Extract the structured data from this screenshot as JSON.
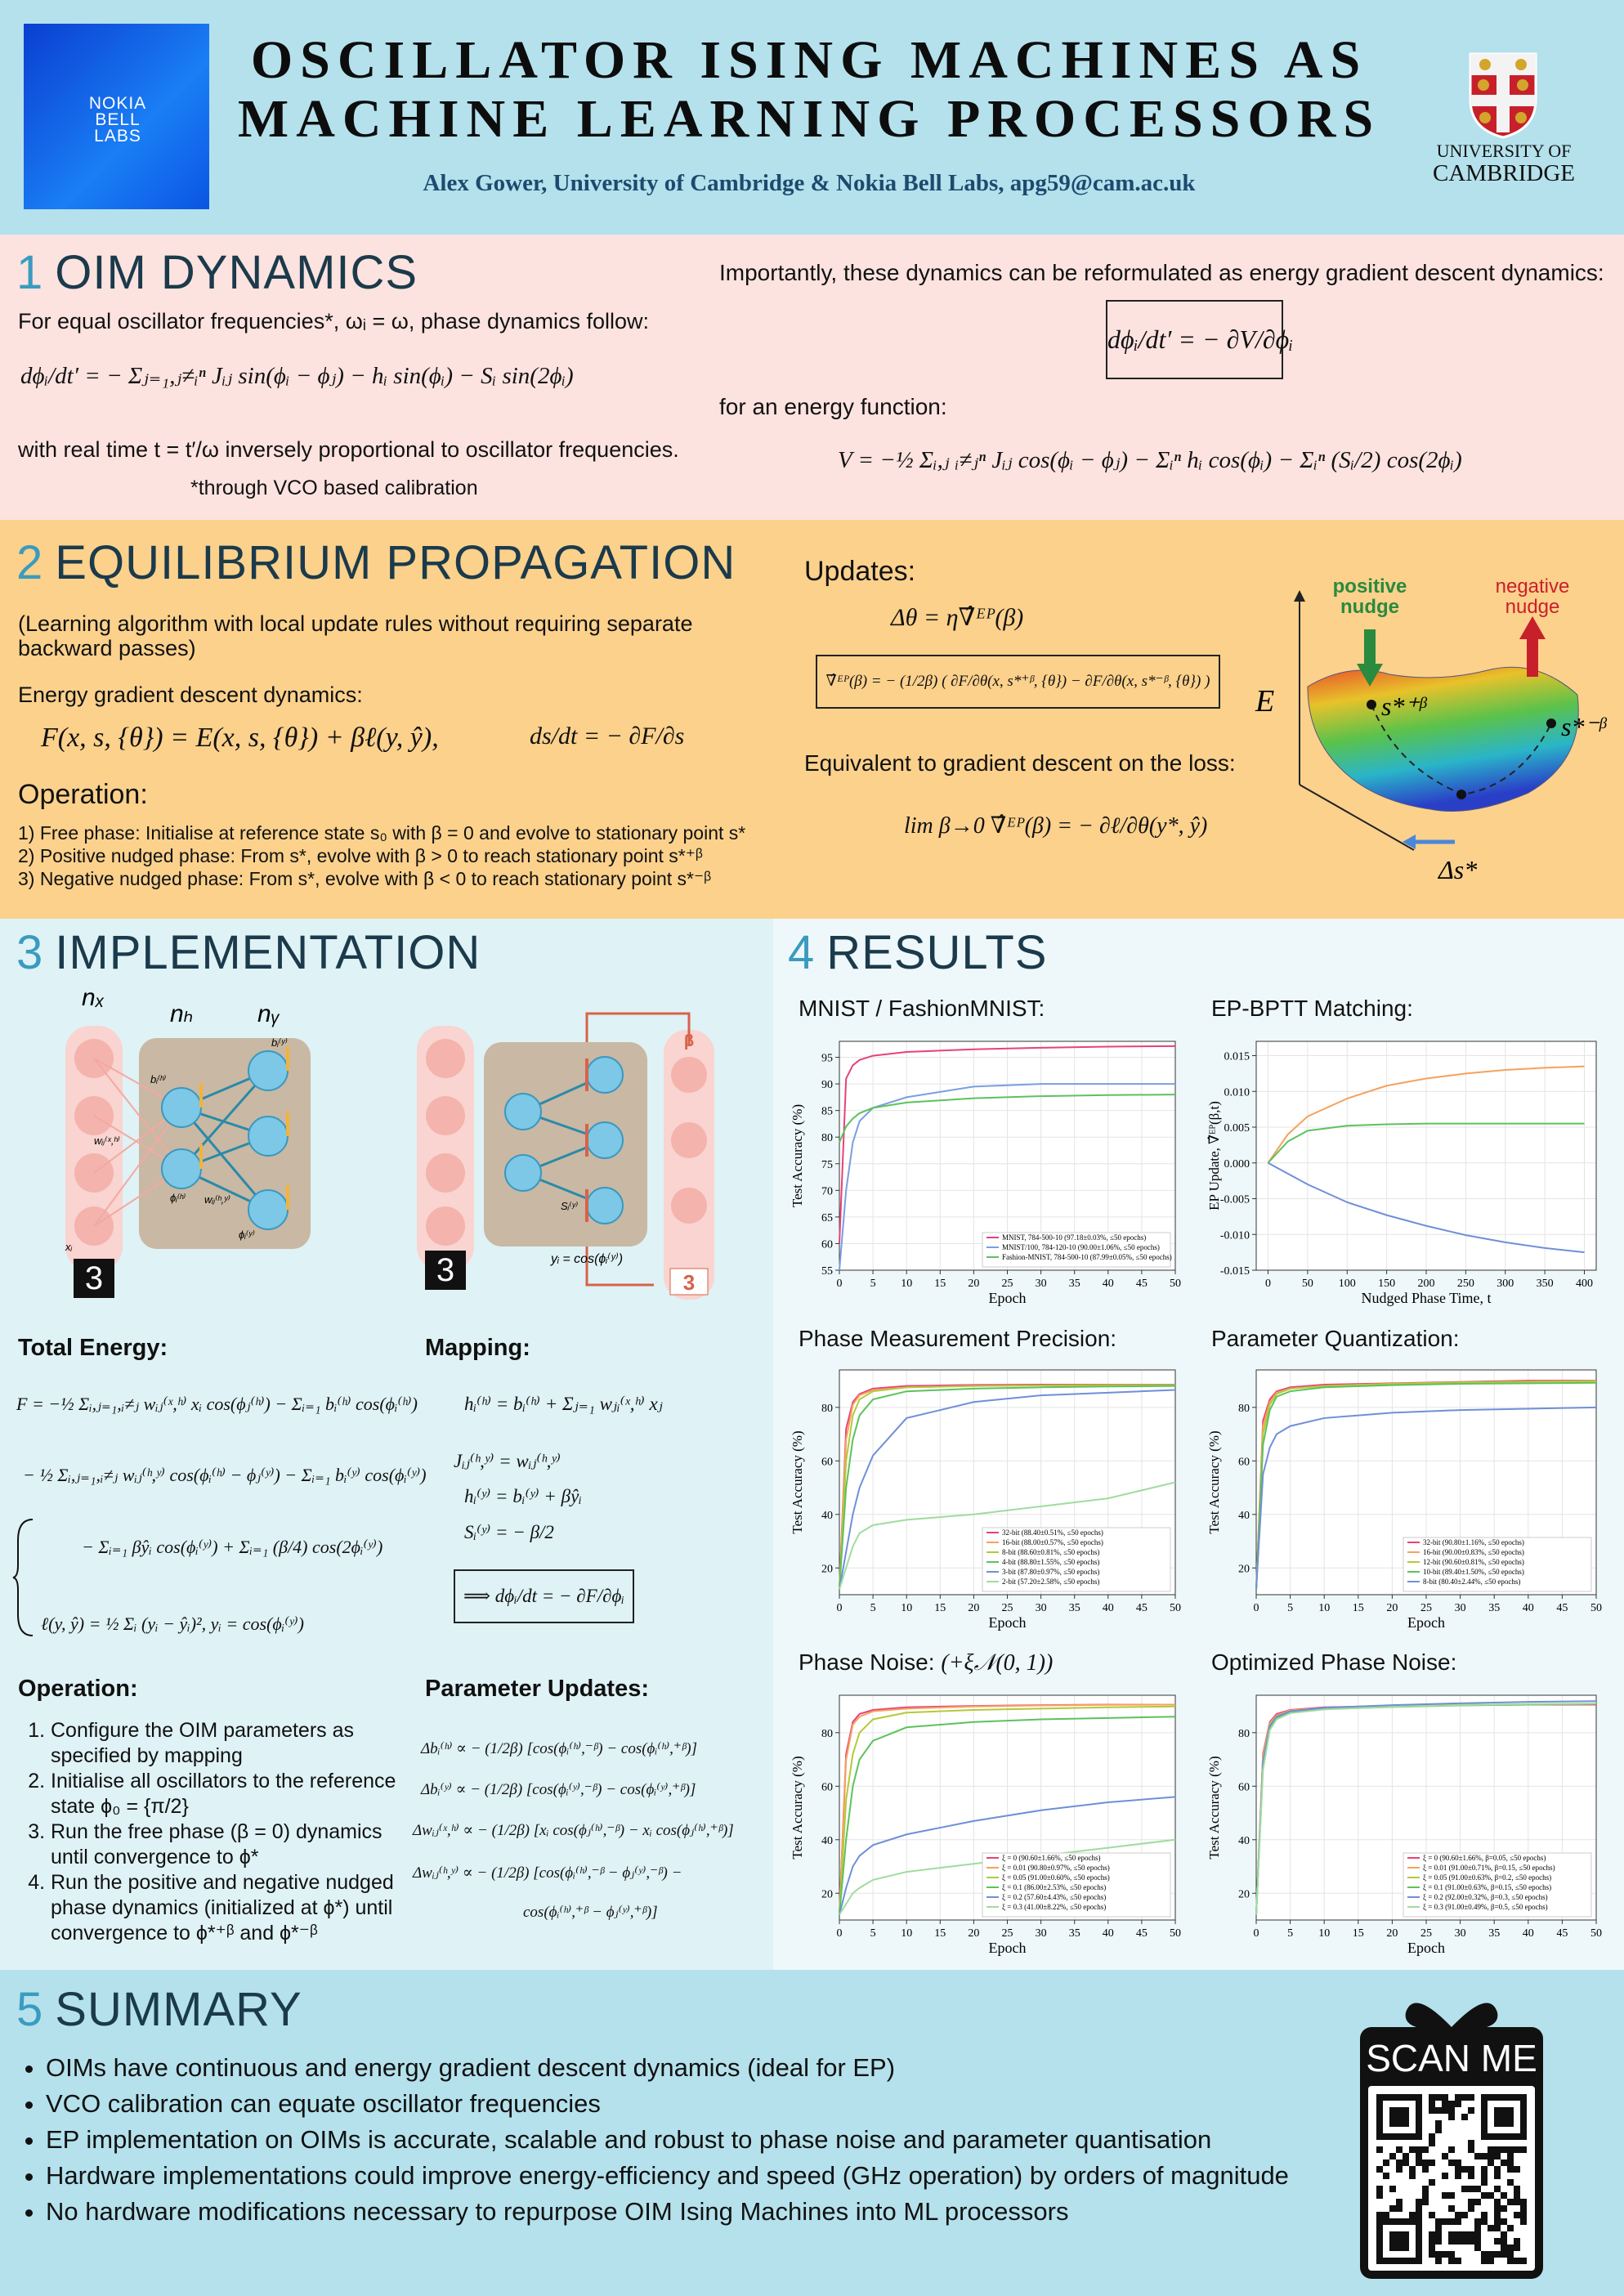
{
  "header": {
    "title_line1": "OSCILLATOR ISING MACHINES AS",
    "title_line2": "MACHINE LEARNING PROCESSORS",
    "authors": "Alex Gower, University of Cambridge & Nokia Bell Labs, apg59@cam.ac.uk",
    "left_logo": [
      "NOKIA",
      "BELL",
      "LABS"
    ],
    "right_logo": [
      "UNIVERSITY OF",
      "CAMBRIDGE"
    ]
  },
  "section1": {
    "number": "1",
    "title": "OIM DYNAMICS",
    "intro": "For equal oscillator frequencies*, ωᵢ = ω, phase dynamics follow:",
    "eq1": "dϕᵢ/dt′ = − Σⱼ₌₁,ⱼ≠ᵢⁿ Jᵢⱼ sin(ϕᵢ − ϕⱼ) − hᵢ sin(ϕᵢ) − Sᵢ sin(2ϕᵢ)",
    "real_time": "with real time t = t′/ω inversely proportional to oscillator frequencies.",
    "footnote": "*through VCO based calibration",
    "reformulated": "Importantly, these dynamics can be reformulated as energy gradient descent dynamics:",
    "eq2": "dϕᵢ/dt′ = − ∂V/∂ϕᵢ",
    "energy_text": "for an energy function:",
    "eq3": "V = −½ Σᵢ,ⱼ ᵢ≠ⱼⁿ Jᵢⱼ cos(ϕᵢ − ϕⱼ) − Σᵢⁿ hᵢ cos(ϕᵢ) − Σᵢⁿ (Sᵢ/2) cos(2ϕᵢ)"
  },
  "section2": {
    "number": "2",
    "title": "EQUILIBRIUM PROPAGATION",
    "description": "(Learning algorithm with local update rules without requiring separate backward passes)",
    "dynamics_label": "Energy gradient descent dynamics:",
    "eq_F": "F(x, s, {θ}) = E(x, s, {θ}) + βℓ(y, ŷ),",
    "eq_ds": "ds/dt = − ∂F/∂s",
    "operation_title": "Operation:",
    "operation_steps": [
      "1) Free phase: Initialise at reference state s₀ with β = 0 and evolve to stationary point s*",
      "2) Positive nudged phase: From s*, evolve with β > 0 to reach stationary point s*⁺ᵝ",
      "3) Negative nudged phase: From s*, evolve with β < 0 to reach stationary point s*⁻ᵝ"
    ],
    "updates_title": "Updates:",
    "eq_dtheta": "Δθ = η∇̂ᴱᴾ(β)",
    "eq_grad": "∇̂ᴱᴾ(β) = − (1/2β) ( ∂F/∂θ(x, s*⁺ᵝ, {θ}) − ∂F/∂θ(x, s*⁻ᵝ, {θ}) )",
    "equivalent": "Equivalent to gradient descent on the loss:",
    "eq_lim": "lim β→0 ∇̂ᴱᴾ(β) = − ∂ℓ/∂θ(y*, ŷ)",
    "surface": {
      "positive": [
        "positive",
        "nudge"
      ],
      "negative": [
        "negative",
        "nudge"
      ],
      "energy": "E",
      "s_plus": "s*⁺ᵝ",
      "s_minus": "s*⁻ᵝ",
      "delta_s": "Δs*"
    }
  },
  "section3": {
    "number": "3",
    "title": "IMPLEMENTATION",
    "diagram": {
      "n_x": "nₓ",
      "n_h": "nₕ",
      "n_y": "nᵧ",
      "beta": "β",
      "digit_left": "3",
      "digit_right": "3",
      "y_eq": "yᵢ = cos(ϕᵢ⁽ʸ⁾)",
      "b_h": "bᵢ⁽ʰ⁾",
      "b_y": "bᵢ⁽ʸ⁾",
      "w_xh": "wᵢⱼ⁽ˣ,ʰ⁾",
      "phi_h": "ϕᵢ⁽ʰ⁾",
      "w_hy": "wᵢⱼ⁽ʰ,ʸ⁾",
      "phi_y": "ϕᵢ⁽ʸ⁾",
      "x_i": "xᵢ",
      "s_y": "Sᵢ⁽ʸ⁾"
    },
    "total_energy_title": "Total Energy:",
    "total_energy": [
      "F = −½ Σᵢ,ⱼ₌₁,ᵢ≠ⱼ wᵢⱼ⁽ˣ,ʰ⁾ xᵢ cos(ϕⱼ⁽ʰ⁾) − Σᵢ₌₁ bᵢ⁽ʰ⁾ cos(ϕᵢ⁽ʰ⁾)",
      "− ½ Σᵢ,ⱼ₌₁,ᵢ≠ⱼ wᵢⱼ⁽ʰ,ʸ⁾ cos(ϕᵢ⁽ʰ⁾ − ϕⱼ⁽ʸ⁾) − Σᵢ₌₁ bᵢ⁽ʸ⁾ cos(ϕᵢ⁽ʸ⁾)",
      "− Σᵢ₌₁ βŷᵢ cos(ϕᵢ⁽ʸ⁾) + Σᵢ₌₁ (β/4) cos(2ϕᵢ⁽ʸ⁾)",
      "ℓ(y, ŷ) = ½ Σᵢ (yᵢ − ŷᵢ)²,   yᵢ = cos(ϕᵢ⁽ʸ⁾)"
    ],
    "mapping_title": "Mapping:",
    "mapping": [
      "hᵢ⁽ʰ⁾ = bᵢ⁽ʰ⁾ + Σⱼ₌₁ wⱼᵢ⁽ˣ,ʰ⁾ xⱼ",
      "Jᵢⱼ⁽ʰ,ʸ⁾ = wᵢⱼ⁽ʰ,ʸ⁾",
      "hᵢ⁽ʸ⁾ = bᵢ⁽ʸ⁾ + βŷᵢ",
      "Sᵢ⁽ʸ⁾ = − β/2",
      "⟹  dϕᵢ/dt = − ∂F/∂ϕᵢ"
    ],
    "operation_title": "Operation:",
    "operation_steps": [
      "Configure the OIM parameters as specified by mapping",
      "Initialise all oscillators to the reference state ϕ₀ = {π/2}",
      "Run the free phase (β = 0) dynamics until convergence to ϕ*",
      "Run the positive and negative nudged phase dynamics (initialized at ϕ*) until convergence to ϕ*⁺ᵝ and ϕ*⁻ᵝ"
    ],
    "updates_title": "Parameter Updates:",
    "updates": [
      "Δbᵢ⁽ʰ⁾ ∝ − (1/2β) [cos(ϕᵢ⁽ʰ⁾,⁻ᵝ) − cos(ϕᵢ⁽ʰ⁾,⁺ᵝ)]",
      "Δbᵢ⁽ʸ⁾ ∝ − (1/2β) [cos(ϕᵢ⁽ʸ⁾,⁻ᵝ) − cos(ϕᵢ⁽ʸ⁾,⁺ᵝ)]",
      "Δwᵢⱼ⁽ˣ,ʰ⁾ ∝ − (1/2β) [xᵢ cos(ϕⱼ⁽ʰ⁾,⁻ᵝ) − xᵢ cos(ϕⱼ⁽ʰ⁾,⁺ᵝ)]",
      "Δwᵢⱼ⁽ʰ,ʸ⁾ ∝ − (1/2β) [cos(ϕᵢ⁽ʰ⁾,⁻ᵝ − ϕⱼ⁽ʸ⁾,⁻ᵝ) −",
      "cos(ϕᵢ⁽ʰ⁾,⁺ᵝ − ϕⱼ⁽ʸ⁾,⁺ᵝ)]"
    ]
  },
  "section4": {
    "number": "4",
    "title": "RESULTS"
  },
  "chart_data": [
    {
      "type": "line",
      "title": "MNIST / FashionMNIST:",
      "xlabel": "Epoch",
      "ylabel": "Test Accuracy (%)",
      "xlim": [
        0,
        50
      ],
      "xticks": [
        0,
        5,
        10,
        15,
        20,
        25,
        30,
        35,
        40,
        45,
        50
      ],
      "ylim": [
        55,
        98
      ],
      "yticks": [
        55,
        60,
        65,
        70,
        75,
        80,
        85,
        90,
        95
      ],
      "grid": true,
      "x": [
        0,
        1,
        2,
        3,
        5,
        10,
        20,
        30,
        40,
        50
      ],
      "series": [
        {
          "name": "MNIST, 784-500-10 (97.18±0.03%, ≤50 epochs)",
          "color": "#e8417a",
          "values": [
            60,
            91,
            93.5,
            94.5,
            95.3,
            96,
            96.5,
            96.8,
            97,
            97.1
          ]
        },
        {
          "name": "MNIST/100, 784-120-10 (90.00±1.06%, ≤50 epochs)",
          "color": "#7a9ee0",
          "values": [
            55,
            70,
            79,
            83,
            85.5,
            87.5,
            89.5,
            90,
            90,
            90
          ]
        },
        {
          "name": "Fashion-MNIST, 784-500-10 (87.99±0.05%, ≤50 epochs)",
          "color": "#5cc25c",
          "values": [
            79,
            82,
            83.5,
            84.5,
            85.5,
            86.5,
            87.3,
            87.7,
            87.9,
            88
          ]
        }
      ]
    },
    {
      "type": "line",
      "title": "EP-BPTT Matching:",
      "xlabel": "Nudged Phase Time, t",
      "ylabel": "EP Update, ∇̂ᴱᴾ(β,t)",
      "xlim": [
        -15,
        415
      ],
      "xticks": [
        0,
        50,
        100,
        150,
        200,
        250,
        300,
        350,
        400
      ],
      "ylim": [
        -0.015,
        0.017
      ],
      "yticks": [
        -0.015,
        {
          "value": -0.01,
          "label": "-0.010"
        },
        -0.005,
        {
          "value": 0,
          "label": "0.000"
        },
        0.005,
        {
          "value": 0.01,
          "label": "0.010"
        },
        0.015
      ],
      "grid": true,
      "x": [
        0,
        25,
        50,
        100,
        150,
        200,
        250,
        300,
        350,
        400
      ],
      "series": [
        {
          "color": "#f5a25d",
          "values": [
            0,
            0.004,
            0.0065,
            0.009,
            0.0108,
            0.0118,
            0.0125,
            0.013,
            0.0133,
            0.0135
          ]
        },
        {
          "color": "#5cc25c",
          "values": [
            0,
            0.003,
            0.0045,
            0.0052,
            0.0054,
            0.0055,
            0.0055,
            0.0055,
            0.0055,
            0.0055
          ]
        },
        {
          "color": "#6f8fd8",
          "values": [
            0,
            -0.0015,
            -0.003,
            -0.0055,
            -0.0073,
            -0.0088,
            -0.0101,
            -0.0111,
            -0.0119,
            -0.0125
          ]
        }
      ]
    },
    {
      "type": "line",
      "title": "Phase Measurement Precision:",
      "xlabel": "Epoch",
      "ylabel": "Test Accuracy (%)",
      "xlim": [
        0,
        50
      ],
      "xticks": [
        0,
        5,
        10,
        15,
        20,
        25,
        30,
        35,
        40,
        45,
        50
      ],
      "ylim": [
        10,
        94
      ],
      "yticks": [
        20,
        40,
        60,
        80
      ],
      "grid": true,
      "x": [
        0,
        1,
        2,
        3,
        5,
        10,
        20,
        30,
        40,
        50
      ],
      "series": [
        {
          "name": "32-bit (88.40±0.51%, ≤50 epochs)",
          "color": "#e8417a",
          "values": [
            12,
            72,
            82,
            85,
            87,
            88,
            88.4,
            88.5,
            88.5,
            88.5
          ]
        },
        {
          "name": "16-bit (88.00±0.57%, ≤50 epochs)",
          "color": "#f5a25d",
          "values": [
            12,
            68,
            81,
            84.5,
            86.5,
            87.5,
            88,
            88.2,
            88.3,
            88.3
          ]
        },
        {
          "name": "8-bit (88.60±0.81%, ≤50 epochs)",
          "color": "#b5c93a",
          "values": [
            12,
            60,
            77,
            83,
            86,
            87.5,
            88,
            88.2,
            88.3,
            88.4
          ]
        },
        {
          "name": "4-bit (88.80±1.55%, ≤50 epochs)",
          "color": "#5cc25c",
          "values": [
            12,
            50,
            68,
            77,
            83,
            86,
            87,
            87.5,
            87.8,
            88
          ]
        },
        {
          "name": "3-bit (87.80±0.97%, ≤50 epochs)",
          "color": "#6f8fd8",
          "values": [
            12,
            26,
            40,
            50,
            62,
            76,
            82,
            84.5,
            85.5,
            86.5
          ]
        },
        {
          "name": "2-bit (57.20±2.58%, ≤50 epochs)",
          "color": "#9fdc9f",
          "values": [
            12,
            20,
            28,
            33,
            36,
            38,
            40,
            43,
            46,
            52
          ]
        }
      ]
    },
    {
      "type": "line",
      "title": "Parameter Quantization:",
      "xlabel": "Epoch",
      "ylabel": "Test Accuracy (%)",
      "xlim": [
        0,
        50
      ],
      "xticks": [
        0,
        5,
        10,
        15,
        20,
        25,
        30,
        35,
        40,
        45,
        50
      ],
      "ylim": [
        10,
        94
      ],
      "yticks": [
        20,
        40,
        60,
        80
      ],
      "grid": true,
      "x": [
        0,
        1,
        2,
        3,
        5,
        10,
        20,
        30,
        40,
        50
      ],
      "series": [
        {
          "name": "32-bit (90.80±1.16%, ≤50 epochs)",
          "color": "#e8417a",
          "values": [
            12,
            75,
            83,
            86,
            87.5,
            88.5,
            89,
            89.5,
            90,
            90
          ]
        },
        {
          "name": "16-bit (90.00±0.83%, ≤50 epochs)",
          "color": "#f5a25d",
          "values": [
            12,
            73,
            82,
            85.5,
            87,
            88,
            88.8,
            89.3,
            89.6,
            89.8
          ]
        },
        {
          "name": "12-bit (90.60±0.81%, ≤50 epochs)",
          "color": "#b5c93a",
          "values": [
            12,
            70,
            81,
            85,
            87,
            88,
            88.8,
            89.3,
            89.6,
            89.8
          ]
        },
        {
          "name": "10-bit (89.40±1.50%, ≤50 epochs)",
          "color": "#5cc25c",
          "values": [
            12,
            66,
            79,
            84,
            86,
            87.5,
            88.3,
            88.8,
            89,
            89.2
          ]
        },
        {
          "name": "8-bit (80.40±2.44%, ≤50 epochs)",
          "color": "#6f8fd8",
          "values": [
            12,
            55,
            65,
            70,
            73,
            76,
            78,
            79,
            79.5,
            80
          ]
        }
      ]
    },
    {
      "type": "line",
      "title": "Phase Noise:",
      "subtitle": "(+ξ𝒩(0, 1))",
      "xlabel": "Epoch",
      "ylabel": "Test Accuracy (%)",
      "xlim": [
        0,
        50
      ],
      "xticks": [
        0,
        5,
        10,
        15,
        20,
        25,
        30,
        35,
        40,
        45,
        50
      ],
      "ylim": [
        10,
        94
      ],
      "yticks": [
        20,
        40,
        60,
        80
      ],
      "grid": true,
      "x": [
        0,
        1,
        2,
        3,
        5,
        10,
        20,
        30,
        40,
        50
      ],
      "series": [
        {
          "name": "ξ = 0 (90.60±1.66%, ≤50 epochs)",
          "color": "#e8417a",
          "values": [
            12,
            72,
            84,
            87,
            88.5,
            89.5,
            90,
            90.3,
            90.5,
            90.5
          ]
        },
        {
          "name": "ξ = 0.01 (90.80±0.97%, ≤50 epochs)",
          "color": "#f5a25d",
          "values": [
            12,
            70,
            83,
            86,
            88,
            89,
            89.8,
            90.2,
            90.4,
            90.5
          ]
        },
        {
          "name": "ξ = 0.05 (91.00±0.60%, ≤50 epochs)",
          "color": "#b5c93a",
          "values": [
            12,
            55,
            72,
            80,
            85,
            87.5,
            88.5,
            89,
            89.5,
            89.8
          ]
        },
        {
          "name": "ξ = 0.1 (86.00±2.53%, ≤50 epochs)",
          "color": "#5cc25c",
          "values": [
            12,
            40,
            60,
            70,
            77,
            82,
            84,
            85,
            85.5,
            86
          ]
        },
        {
          "name": "ξ = 0.2 (57.60±4.43%, ≤50 epochs)",
          "color": "#6f8fd8",
          "values": [
            12,
            22,
            30,
            34,
            38,
            42,
            47,
            51,
            54,
            56
          ]
        },
        {
          "name": "ξ = 0.3 (41.00±8.22%, ≤50 epochs)",
          "color": "#9fdc9f",
          "values": [
            12,
            16,
            20,
            22,
            25,
            28,
            31,
            34,
            37,
            40
          ]
        }
      ]
    },
    {
      "type": "line",
      "title": "Optimized Phase Noise:",
      "xlabel": "Epoch",
      "ylabel": "Test Accuracy (%)",
      "xlim": [
        0,
        50
      ],
      "xticks": [
        0,
        5,
        10,
        15,
        20,
        25,
        30,
        35,
        40,
        45,
        50
      ],
      "ylim": [
        10,
        94
      ],
      "yticks": [
        20,
        40,
        60,
        80
      ],
      "grid": true,
      "x": [
        0,
        1,
        2,
        3,
        5,
        10,
        20,
        30,
        40,
        50
      ],
      "series": [
        {
          "name": "ξ = 0 (90.60±1.66%, β=0.05, ≤50 epochs)",
          "color": "#e8417a",
          "values": [
            12,
            72,
            84,
            87,
            88.5,
            89.5,
            90,
            90.3,
            90.5,
            90.5
          ]
        },
        {
          "name": "ξ = 0.01 (91.00±0.71%, β=0.15, ≤50 epochs)",
          "color": "#f5a25d",
          "values": [
            12,
            71,
            83.5,
            86.5,
            88.3,
            89.3,
            90,
            90.4,
            90.6,
            90.8
          ]
        },
        {
          "name": "ξ = 0.05 (91.00±0.63%, β=0.2, ≤50 epochs)",
          "color": "#b5c93a",
          "values": [
            12,
            70,
            83,
            86,
            88,
            89,
            89.8,
            90.3,
            90.6,
            90.8
          ]
        },
        {
          "name": "ξ = 0.1 (91.00±0.63%, β=0.15, ≤50 epochs)",
          "color": "#5cc25c",
          "values": [
            12,
            68,
            82,
            85.5,
            87.5,
            88.8,
            89.6,
            90.2,
            90.5,
            90.8
          ]
        },
        {
          "name": "ξ = 0.2 (92.00±0.32%, β=0.3, ≤50 epochs)",
          "color": "#6f8fd8",
          "values": [
            12,
            69,
            82.5,
            86,
            88,
            89.3,
            90.3,
            91,
            91.5,
            91.8
          ]
        },
        {
          "name": "ξ = 0.3 (91.00±0.49%, β=0.5, ≤50 epochs)",
          "color": "#9fdc9f",
          "values": [
            12,
            66,
            81,
            85,
            87.3,
            88.7,
            89.7,
            90.3,
            90.7,
            90.9
          ]
        }
      ]
    }
  ],
  "section5": {
    "number": "5",
    "title": "SUMMARY",
    "bullets": [
      "OIMs have continuous and energy gradient descent dynamics (ideal for EP)",
      "VCO calibration can equate oscillator frequencies",
      "EP implementation on OIMs is accurate, scalable and robust to phase noise and parameter quantisation",
      "Hardware implementations could improve energy-efficiency and speed (GHz operation) by orders of magnitude",
      "No hardware modifications necessary to repurpose OIM Ising Machines into ML processors"
    ],
    "qr_label": "SCAN ME"
  }
}
